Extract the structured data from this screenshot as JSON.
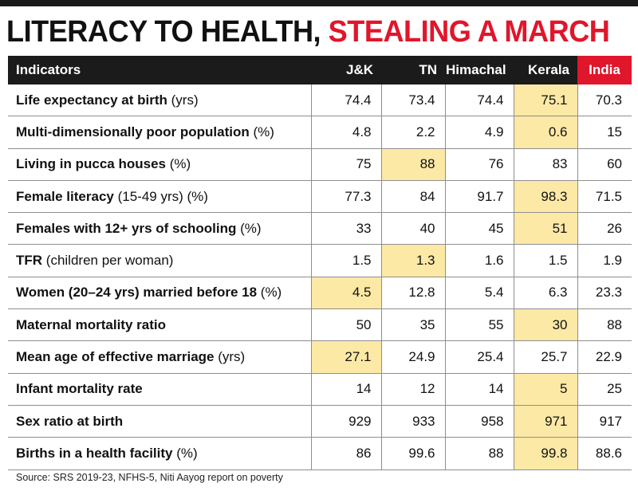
{
  "title": {
    "part1": "LITERACY TO HEALTH,",
    "part2": "STEALING A MARCH"
  },
  "colors": {
    "accent": "#e0162b",
    "header_bg": "#1b1b1b",
    "highlight": "#fde9a6"
  },
  "chart_data": {
    "type": "table",
    "title": "LITERACY TO HEALTH, STEALING A MARCH",
    "columns": [
      "Indicators",
      "J&K",
      "TN",
      "Himachal",
      "Kerala",
      "India"
    ],
    "rows": [
      {
        "label": "Life expectancy at birth",
        "unit": "(yrs)",
        "values": [
          "74.4",
          "73.4",
          "74.4",
          "75.1",
          "70.3"
        ],
        "highlight": 3
      },
      {
        "label": "Multi-dimensionally poor population",
        "unit": "(%)",
        "values": [
          "4.8",
          "2.2",
          "4.9",
          "0.6",
          "15"
        ],
        "highlight": 3
      },
      {
        "label": "Living in pucca houses",
        "unit": "(%)",
        "values": [
          "75",
          "88",
          "76",
          "83",
          "60"
        ],
        "highlight": 1
      },
      {
        "label": "Female literacy",
        "unit": "(15-49 yrs) (%)",
        "values": [
          "77.3",
          "84",
          "91.7",
          "98.3",
          "71.5"
        ],
        "highlight": 3
      },
      {
        "label": "Females with 12+ yrs of schooling",
        "unit": "(%)",
        "values": [
          "33",
          "40",
          "45",
          "51",
          "26"
        ],
        "highlight": 3
      },
      {
        "label": "TFR",
        "unit": "(children per woman)",
        "values": [
          "1.5",
          "1.3",
          "1.6",
          "1.5",
          "1.9"
        ],
        "highlight": 1
      },
      {
        "label": "Women (20–24 yrs) married before 18",
        "unit": "(%)",
        "values": [
          "4.5",
          "12.8",
          "5.4",
          "6.3",
          "23.3"
        ],
        "highlight": 0
      },
      {
        "label": "Maternal mortality ratio",
        "unit": "",
        "values": [
          "50",
          "35",
          "55",
          "30",
          "88"
        ],
        "highlight": 3
      },
      {
        "label": "Mean age of effective marriage",
        "unit": "(yrs)",
        "values": [
          "27.1",
          "24.9",
          "25.4",
          "25.7",
          "22.9"
        ],
        "highlight": 0
      },
      {
        "label": "Infant mortality rate",
        "unit": "",
        "values": [
          "14",
          "12",
          "14",
          "5",
          "25"
        ],
        "highlight": 3
      },
      {
        "label": "Sex ratio at birth",
        "unit": "",
        "values": [
          "929",
          "933",
          "958",
          "971",
          "917"
        ],
        "highlight": 3
      },
      {
        "label": "Births in a health facility",
        "unit": "(%)",
        "values": [
          "86",
          "99.6",
          "88",
          "99.8",
          "88.6"
        ],
        "highlight": 3
      }
    ],
    "source": "Source: SRS 2019-23, NFHS-5, Niti Aayog report on poverty"
  }
}
